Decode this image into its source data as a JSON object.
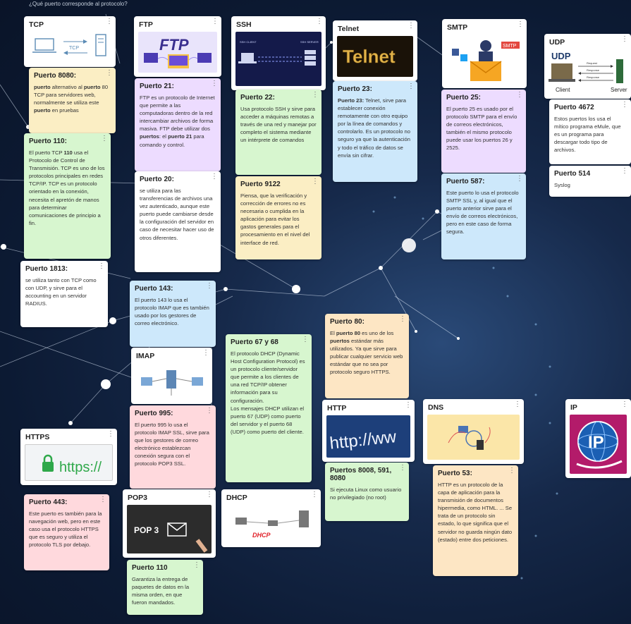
{
  "board": {
    "title": "¿Qué puerto corresponde al protocolo?"
  },
  "headers": {
    "tcp": {
      "title": "TCP",
      "pic_label": "TCP"
    },
    "ftp": {
      "title": "FTP",
      "pic_label": "FTP"
    },
    "ssh": {
      "title": "SSH",
      "client": "SSH CLIENT",
      "server": "SSH SERVER"
    },
    "telnet": {
      "title": "Telnet",
      "pic_label": "Telnet"
    },
    "smtp": {
      "title": "SMTP",
      "pic_label": "SMTP"
    },
    "udp": {
      "title": "UDP",
      "pic_label": "UDP",
      "request": "Request",
      "response1": "Response",
      "response2": "Response",
      "client": "Client",
      "server": "Server"
    },
    "imap": {
      "title": "IMAP"
    },
    "https": {
      "title": "HTTPS",
      "pic_label": "https://"
    },
    "http": {
      "title": "HTTP",
      "pic_label": "http://ww"
    },
    "dns": {
      "title": "DNS"
    },
    "ip": {
      "title": "IP",
      "pic_label": "IP"
    },
    "pop3": {
      "title": "POP3",
      "pic_label": "POP 3"
    },
    "dhcp": {
      "title": "DHCP",
      "pic_label": "DHCP"
    }
  },
  "notes": {
    "p8080": {
      "title": "Puerto 8080:",
      "b1": "puerto",
      "t1": " alternativo al ",
      "b2": "puerto",
      "t2": " 80 TCP para servidores web, normalmente se utiliza este ",
      "b3": "puerto",
      "t3": " en pruebas"
    },
    "p110tcp": {
      "title": "Puerto 110:",
      "t1": "El puerto TCP ",
      "b1": "110",
      "t2": " usa el Protocolo de Control de Transmisión. TCP es uno de los protocolos principales en redes TCP/IP. TCP es un protocolo orientado en la conexión, necesita el apretón de manos para determinar comunicaciones de principio a fin."
    },
    "p1813": {
      "title": "Puerto 1813:",
      "body": "se utiliza tanto con TCP como con UDP, y sirve para el accounting en un servidor RADIUS."
    },
    "p21": {
      "title": "Puerto 21:",
      "t1": "FTP es un protocolo de Internet que permite a las computadoras dentro de la red intercambiar archivos de forma masiva. FTP debe utilizar dos ",
      "b1": "puertos",
      "t2": ": el ",
      "b2": "puerto 21",
      "t3": " para comando y control."
    },
    "p20": {
      "title": "Puerto 20:",
      "body": "se utiliza para las transferencias de archivos una vez autenticado, aunque este puerto puede cambiarse desde la configuración del servidor en caso de necesitar hacer uso de otros diferentes."
    },
    "p143": {
      "title": "Puerto 143:",
      "body": "El puerto 143 lo usa el protocolo IMAP que es también usado por los gestores de correo electrónico."
    },
    "p995": {
      "title": "Puerto 995:",
      "body": "El puerto 995 lo usa el protocolo IMAP SSL, sirve para que los gestores de correo electrónico establezcan conexión segura con el protocolo POP3 SSL."
    },
    "p22": {
      "title": "Puerto 22:",
      "body": "Usa protocolo SSH y sirve para acceder a máquinas remotas a través de una red y manejar por completo el sistema mediante un intérprete de comandos"
    },
    "p9122": {
      "title": "Puerto 9122",
      "body": "Piensa, que la verificación y corrección de errores no es necesaria o cumplida en la aplicación para evitar los gastos generales para el procesamiento en el nivel del interface de red."
    },
    "p6768": {
      "title": "Puerto 67 y 68",
      "body1": "El protocolo DHCP (Dynamic Host Configuration Protocol) es un protocolo cliente/servidor que permite a los clientes de una red TCP/IP obtener información para su configuración.",
      "body2": "Los mensajes DHCP utilizan el puerto 67 (UDP) como puerto del servidor y el puerto 68 (UDP) como puerto del cliente."
    },
    "p23": {
      "title": "Puerto 23:",
      "b1": "Puerto 23:",
      "t1": " Telnet, sirve para establecer conexión remotamente con otro equipo por la línea de comandos y controlarlo. Es un protocolo no seguro ya que la autenticación y todo el tráfico de datos se envía sin cifrar."
    },
    "p80": {
      "title": "Puerto 80:",
      "t1": "El ",
      "b1": "puerto 80",
      "t2": " es uno de los ",
      "b2": "puertos",
      "t3": " estándar más utilizados. Ya que sirve para publicar cualquier servicio web estándar que no sea por protocolo seguro HTTPS."
    },
    "p25": {
      "title": "Puerto 25:",
      "body": "El puerto 25 es usado por el protocolo SMTP para el envío de correos electrónicos, también el mismo protocolo puede usar los puertos 26 y 2525."
    },
    "p587": {
      "title": "Puerto 587:",
      "body": "Este puerto lo usa el protocolo SMTP SSL y, al igual que el puerto anterior sirve para el envío de correos electrónicos, pero en este caso de forma segura."
    },
    "p4672": {
      "title": "Puerto 4672",
      "body": "Estos puertos los usa el mítico programa eMule, que es un programa para descargar todo tipo de archivos."
    },
    "p514": {
      "title": "Puerto 514",
      "body": "Syslog"
    },
    "p8008": {
      "title": "Puertos 8008, 591, 8080",
      "body": "Si ejecuta Linux como usuario no privilegiado (no root)"
    },
    "p53": {
      "title": "Puerto 53:",
      "body": "HTTP es un protocolo de la capa de aplicación para la transmisión de documentos hipermedia, como HTML. ... Se trata de un protocolo sin estado, lo que significa que el servidor no guarda ningún dato (estado) entre dos peticiones."
    },
    "p443": {
      "title": "Puerto 443:",
      "body": "Este puerto es también para la navegación web, pero en este caso usa el protocolo HTTPS que es seguro y utiliza el protocolo TLS por debajo."
    },
    "p110pop": {
      "title": "Puerto 110",
      "body": "Garantiza la entrega de paquetes de datos en la misma orden, en que fueron mandados."
    }
  },
  "menu_glyph": "⋮",
  "colors": {
    "yellow": "#fbeec4",
    "green": "#d7f6cf",
    "purple": "#eddcff",
    "blue": "#cde8fb",
    "pink": "#ffd9dd",
    "orange": "#fde6c4"
  }
}
